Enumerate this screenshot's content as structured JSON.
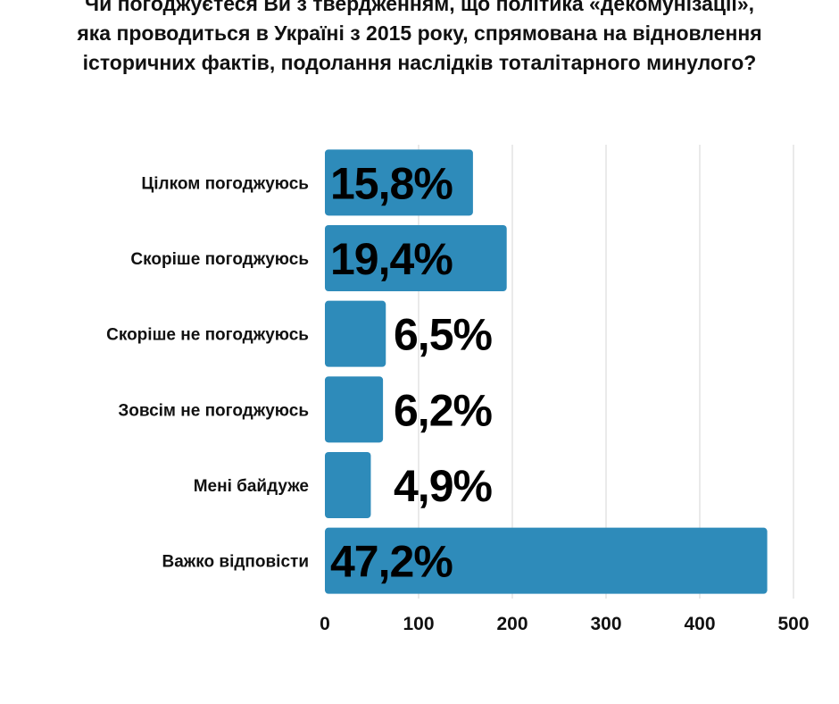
{
  "chart_data": {
    "type": "bar",
    "orientation": "horizontal",
    "title_lines": [
      "Чи погоджуєтеся Ви з твердженням, що політика «декомунізації»,",
      "яка проводиться в Україні з 2015 року, спрямована на відновлення",
      "історичних фактів, подолання наслідків тоталітарного минулого?"
    ],
    "categories": [
      "Цілком погоджуюсь",
      "Скоріше погоджуюсь",
      "Скоріше не погоджуюсь",
      "Зовсім не погоджуюсь",
      "Мені байдуже",
      "Важко відповісти"
    ],
    "values": [
      158,
      194,
      65,
      62,
      49,
      472
    ],
    "data_labels": [
      "15,8%",
      "19,4%",
      "6,5%",
      "6,2%",
      "4,9%",
      "47,2%"
    ],
    "xlim": [
      0,
      500
    ],
    "xticks": [
      "0",
      "100",
      "200",
      "300",
      "400",
      "500"
    ],
    "xtick_values": [
      0,
      100,
      200,
      300,
      400,
      500
    ],
    "grid": true,
    "bar_color": "#2e8bba",
    "xlabel": "",
    "ylabel": ""
  }
}
